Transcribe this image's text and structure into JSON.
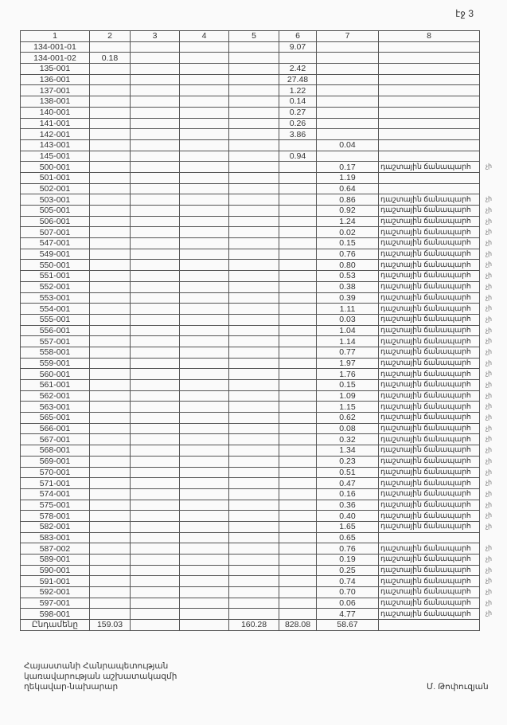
{
  "page_label": "էջ 3",
  "headers": [
    "1",
    "2",
    "3",
    "4",
    "5",
    "6",
    "7",
    "8"
  ],
  "road_label": "դաշտային ճանապարհ",
  "margin_mark": "չի",
  "rows": [
    [
      "134-001-01",
      "",
      "",
      "",
      "",
      "9.07",
      "",
      ""
    ],
    [
      "134-001-02",
      "0.18",
      "",
      "",
      "",
      "",
      "",
      ""
    ],
    [
      "135-001",
      "",
      "",
      "",
      "",
      "2.42",
      "",
      ""
    ],
    [
      "136-001",
      "",
      "",
      "",
      "",
      "27.48",
      "",
      ""
    ],
    [
      "137-001",
      "",
      "",
      "",
      "",
      "1.22",
      "",
      ""
    ],
    [
      "138-001",
      "",
      "",
      "",
      "",
      "0.14",
      "",
      ""
    ],
    [
      "140-001",
      "",
      "",
      "",
      "",
      "0.27",
      "",
      ""
    ],
    [
      "141-001",
      "",
      "",
      "",
      "",
      "0.26",
      "",
      ""
    ],
    [
      "142-001",
      "",
      "",
      "",
      "",
      "3.86",
      "",
      ""
    ],
    [
      "143-001",
      "",
      "",
      "",
      "",
      "",
      "0.04",
      ""
    ],
    [
      "145-001",
      "",
      "",
      "",
      "",
      "0.94",
      "",
      ""
    ],
    [
      "500-001",
      "",
      "",
      "",
      "",
      "",
      "0.17",
      "դաշտային ճանապարհ"
    ],
    [
      "501-001",
      "",
      "",
      "",
      "",
      "",
      "1.19",
      ""
    ],
    [
      "502-001",
      "",
      "",
      "",
      "",
      "",
      "0.64",
      ""
    ],
    [
      "503-001",
      "",
      "",
      "",
      "",
      "",
      "0.86",
      "դաշտային ճանապարհ"
    ],
    [
      "505-001",
      "",
      "",
      "",
      "",
      "",
      "0.92",
      "դաշտային ճանապարհ"
    ],
    [
      "506-001",
      "",
      "",
      "",
      "",
      "",
      "1.24",
      "դաշտային ճանապարհ"
    ],
    [
      "507-001",
      "",
      "",
      "",
      "",
      "",
      "0.02",
      "դաշտային ճանապարհ"
    ],
    [
      "547-001",
      "",
      "",
      "",
      "",
      "",
      "0.15",
      "դաշտային ճանապարհ"
    ],
    [
      "549-001",
      "",
      "",
      "",
      "",
      "",
      "0.76",
      "դաշտային ճանապարհ"
    ],
    [
      "550-001",
      "",
      "",
      "",
      "",
      "",
      "0.80",
      "դաշտային ճանապարհ"
    ],
    [
      "551-001",
      "",
      "",
      "",
      "",
      "",
      "0.53",
      "դաշտային ճանապարհ"
    ],
    [
      "552-001",
      "",
      "",
      "",
      "",
      "",
      "0.38",
      "դաշտային ճանապարհ"
    ],
    [
      "553-001",
      "",
      "",
      "",
      "",
      "",
      "0.39",
      "դաշտային ճանապարհ"
    ],
    [
      "554-001",
      "",
      "",
      "",
      "",
      "",
      "1.11",
      "դաշտային ճանապարհ"
    ],
    [
      "555-001",
      "",
      "",
      "",
      "",
      "",
      "0.03",
      "դաշտային ճանապարհ"
    ],
    [
      "556-001",
      "",
      "",
      "",
      "",
      "",
      "1.04",
      "դաշտային ճանապարհ"
    ],
    [
      "557-001",
      "",
      "",
      "",
      "",
      "",
      "1.14",
      "դաշտային ճանապարհ"
    ],
    [
      "558-001",
      "",
      "",
      "",
      "",
      "",
      "0.77",
      "դաշտային ճանապարհ"
    ],
    [
      "559-001",
      "",
      "",
      "",
      "",
      "",
      "1.97",
      "դաշտային ճանապարհ"
    ],
    [
      "560-001",
      "",
      "",
      "",
      "",
      "",
      "1.76",
      "դաշտային ճանապարհ"
    ],
    [
      "561-001",
      "",
      "",
      "",
      "",
      "",
      "0.15",
      "դաշտային ճանապարհ"
    ],
    [
      "562-001",
      "",
      "",
      "",
      "",
      "",
      "1.09",
      "դաշտային ճանապարհ"
    ],
    [
      "563-001",
      "",
      "",
      "",
      "",
      "",
      "1.15",
      "դաշտային ճանապարհ"
    ],
    [
      "565-001",
      "",
      "",
      "",
      "",
      "",
      "0.62",
      "դաշտային ճանապարհ"
    ],
    [
      "566-001",
      "",
      "",
      "",
      "",
      "",
      "0.08",
      "դաշտային ճանապարհ"
    ],
    [
      "567-001",
      "",
      "",
      "",
      "",
      "",
      "0.32",
      "դաշտային ճանապարհ"
    ],
    [
      "568-001",
      "",
      "",
      "",
      "",
      "",
      "1.34",
      "դաշտային ճանապարհ"
    ],
    [
      "569-001",
      "",
      "",
      "",
      "",
      "",
      "0.23",
      "դաշտային ճանապարհ"
    ],
    [
      "570-001",
      "",
      "",
      "",
      "",
      "",
      "0.51",
      "դաշտային ճանապարհ"
    ],
    [
      "571-001",
      "",
      "",
      "",
      "",
      "",
      "0.47",
      "դաշտային ճանապարհ"
    ],
    [
      "574-001",
      "",
      "",
      "",
      "",
      "",
      "0.16",
      "դաշտային ճանապարհ"
    ],
    [
      "575-001",
      "",
      "",
      "",
      "",
      "",
      "0.36",
      "դաշտային ճանապարհ"
    ],
    [
      "578-001",
      "",
      "",
      "",
      "",
      "",
      "0.40",
      "դաշտային ճանապարհ"
    ],
    [
      "582-001",
      "",
      "",
      "",
      "",
      "",
      "1.65",
      "դաշտային ճանապարհ"
    ],
    [
      "583-001",
      "",
      "",
      "",
      "",
      "",
      "0.65",
      ""
    ],
    [
      "587-002",
      "",
      "",
      "",
      "",
      "",
      "0.76",
      "դաշտային ճանապարհ"
    ],
    [
      "589-001",
      "",
      "",
      "",
      "",
      "",
      "0.19",
      "դաշտային ճանապարհ"
    ],
    [
      "590-001",
      "",
      "",
      "",
      "",
      "",
      "0.25",
      "դաշտային ճանապարհ"
    ],
    [
      "591-001",
      "",
      "",
      "",
      "",
      "",
      "0.74",
      "դաշտային ճանապարհ"
    ],
    [
      "592-001",
      "",
      "",
      "",
      "",
      "",
      "0.70",
      "դաշտային ճանապարհ"
    ],
    [
      "597-001",
      "",
      "",
      "",
      "",
      "",
      "0.06",
      "դաշտային ճանապարհ"
    ],
    [
      "598-001",
      "",
      "",
      "",
      "",
      "",
      "4.77",
      "դաշտային ճանապարհ"
    ]
  ],
  "total": [
    "Ընդամենը",
    "159.03",
    "",
    "",
    "160.28",
    "828.08",
    "58.67",
    ""
  ],
  "footer": {
    "line1": "Հայաստանի Հանրապետության",
    "line2": "կառավարության աշխատակազմի",
    "line3": "ղեկավար-նախարար",
    "signatory": "Մ. Թոփուզյան"
  }
}
